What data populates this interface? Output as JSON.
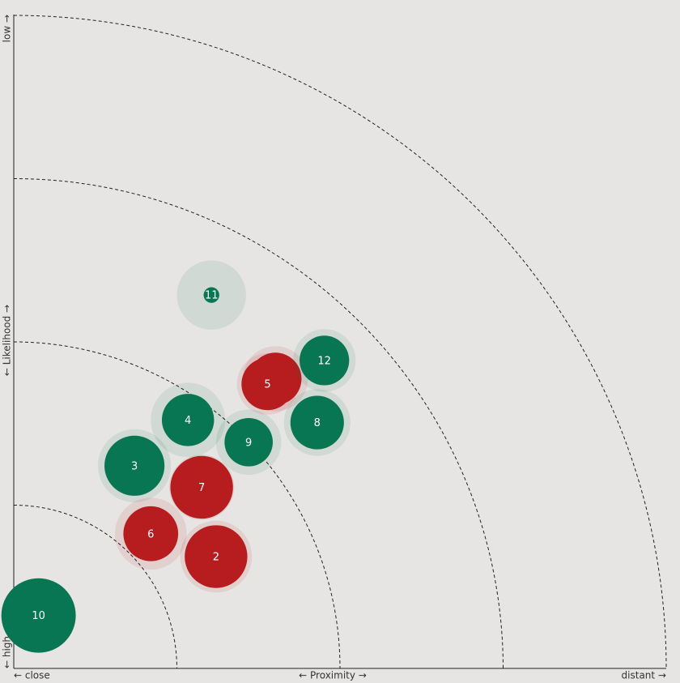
{
  "chart_data": {
    "type": "scatter",
    "x_label_low": "← close",
    "x_label": "← Proximity →",
    "x_label_high": "distant →",
    "y_label_low": "← high",
    "y_label": "← Likelihood →",
    "y_label_high": "low →",
    "xlim": [
      0,
      100
    ],
    "ylim": [
      0,
      100
    ],
    "rings": [
      25,
      50,
      75,
      100
    ],
    "labels": [
      "1",
      "2",
      "3",
      "4",
      "5",
      "6",
      "7",
      "8",
      "9",
      "10",
      "11",
      "12"
    ],
    "x": [
      40.1,
      31.0,
      18.5,
      26.7,
      38.9,
      21.0,
      28.8,
      46.5,
      36.0,
      3.8,
      30.3,
      47.6
    ],
    "values": [
      44.3,
      17.1,
      31.0,
      38.0,
      43.5,
      20.6,
      27.7,
      37.6,
      34.6,
      8.1,
      57.1,
      47.1
    ],
    "sizes": [
      4.0,
      4.8,
      4.6,
      4.0,
      4.0,
      4.2,
      4.8,
      4.1,
      3.7,
      5.7,
      1.2,
      3.8
    ],
    "halos": [
      5.0,
      5.5,
      5.6,
      5.7,
      4.7,
      5.5,
      5.0,
      5.1,
      5.0,
      5.7,
      5.3,
      4.8
    ],
    "colors": [
      "#b71c1f",
      "#b71c1f",
      "#087652",
      "#087652",
      "#b71c1f",
      "#b71c1f",
      "#b71c1f",
      "#087652",
      "#087652",
      "#087652",
      "#087652",
      "#087652"
    ]
  }
}
